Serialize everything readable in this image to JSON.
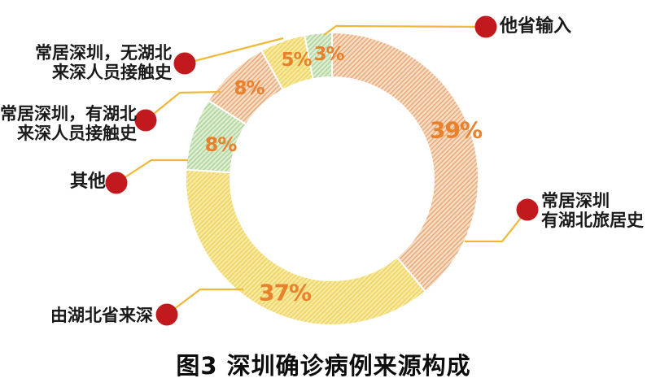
{
  "figure": {
    "title": "图3 深圳确诊病例来源构成"
  },
  "chart_data": {
    "type": "pie",
    "subtype": "donut",
    "title": "图3 深圳确诊病例来源构成",
    "unit": "%",
    "order": "clockwise-from-top",
    "segments": [
      {
        "label": "常居深圳 有湖北旅居史",
        "value": 39,
        "color_key": "orange"
      },
      {
        "label": "由湖北省来深",
        "value": 37,
        "color_key": "yellow"
      },
      {
        "label": "其他",
        "value": 8,
        "color_key": "green"
      },
      {
        "label": "常居深圳，有湖北来深人员接触史",
        "value": 8,
        "color_key": "orange"
      },
      {
        "label": "常居深圳，无湖北来深人员接触史",
        "value": 5,
        "color_key": "yellow"
      },
      {
        "label": "他省输入",
        "value": 3,
        "color_key": "green"
      }
    ],
    "palette": {
      "orange": {
        "base": "#F8DCC0",
        "hatch": "#E4A377"
      },
      "yellow": {
        "base": "#F8E99C",
        "hatch": "#EAD161"
      },
      "green": {
        "base": "#DFEDCD",
        "hatch": "#A3D09E"
      }
    },
    "value_label_color": "#E8802C",
    "leader_line_color": "#EFB83A",
    "dot_color": "#C2191E",
    "background_color": "#FFFFFF"
  },
  "callouts": [
    {
      "lines": [
        "他省输入"
      ]
    },
    {
      "lines": [
        "常居深圳，无湖北",
        "来深人员接触史"
      ]
    },
    {
      "lines": [
        "常居深圳，有湖北",
        "来深人员接触史"
      ]
    },
    {
      "lines": [
        "其他"
      ]
    },
    {
      "lines": [
        "由湖北省来深"
      ]
    },
    {
      "lines": [
        "常居深圳",
        "有湖北旅居史"
      ]
    }
  ]
}
